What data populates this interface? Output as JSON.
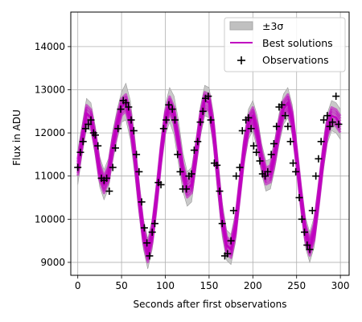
{
  "chart_data": {
    "type": "line",
    "title": "",
    "xlabel": "Seconds after first observations",
    "ylabel": "Flux in ADU",
    "xlim": [
      -8,
      310
    ],
    "ylim": [
      8700,
      14800
    ],
    "xticks": [
      0,
      50,
      100,
      150,
      200,
      250,
      300
    ],
    "yticks": [
      9000,
      10000,
      11000,
      12000,
      13000,
      14000
    ],
    "xtick_labels": [
      "0",
      "50",
      "100",
      "150",
      "200",
      "250",
      "300"
    ],
    "ytick_labels": [
      "9000",
      "10000",
      "11000",
      "12000",
      "13000",
      "14000"
    ],
    "grid": true,
    "legend_position": "top-right",
    "legend": {
      "band": "±3σ",
      "line": "Best solutions",
      "points": "Observations"
    },
    "colors": {
      "band": "#c0c0c0",
      "line": "#c000c0",
      "points": "#000000"
    },
    "curve": {
      "name": "Best solutions",
      "x": [
        0,
        5,
        10,
        15,
        20,
        25,
        30,
        35,
        40,
        45,
        50,
        55,
        60,
        65,
        70,
        75,
        80,
        85,
        90,
        95,
        100,
        105,
        110,
        115,
        120,
        125,
        130,
        135,
        140,
        145,
        150,
        155,
        160,
        165,
        170,
        175,
        180,
        185,
        190,
        195,
        200,
        205,
        210,
        215,
        220,
        225,
        230,
        235,
        240,
        245,
        250,
        255,
        260,
        265,
        270,
        275,
        280,
        285,
        290,
        295,
        300
      ],
      "y": [
        11200,
        11850,
        12450,
        12350,
        11800,
        11100,
        10800,
        11050,
        11700,
        12200,
        12600,
        12700,
        12300,
        11500,
        10500,
        9650,
        9200,
        9650,
        10500,
        11500,
        12300,
        12650,
        12400,
        11800,
        11100,
        10700,
        10800,
        11500,
        12250,
        12750,
        12700,
        12050,
        11000,
        10000,
        9400,
        9300,
        9800,
        10700,
        11600,
        12200,
        12400,
        12000,
        11400,
        11000,
        11050,
        11500,
        12100,
        12550,
        12700,
        12300,
        11450,
        10500,
        9700,
        9350,
        9700,
        10500,
        11400,
        12100,
        12400,
        12350,
        12200
      ]
    },
    "band": {
      "name": "±3σ",
      "x": [
        0,
        5,
        10,
        15,
        20,
        25,
        30,
        35,
        40,
        45,
        50,
        55,
        60,
        65,
        70,
        75,
        80,
        85,
        90,
        95,
        100,
        105,
        110,
        115,
        120,
        125,
        130,
        135,
        140,
        145,
        150,
        155,
        160,
        165,
        170,
        175,
        180,
        185,
        190,
        195,
        200,
        205,
        210,
        215,
        220,
        225,
        230,
        235,
        240,
        245,
        250,
        255,
        260,
        265,
        270,
        275,
        280,
        285,
        290,
        295,
        300
      ],
      "lower": [
        10800,
        11500,
        12100,
        12050,
        11450,
        10750,
        10450,
        10700,
        11350,
        11850,
        12250,
        12300,
        11850,
        11050,
        10100,
        9300,
        8850,
        9300,
        10150,
        11150,
        11950,
        12250,
        11950,
        11300,
        10650,
        10300,
        10400,
        11150,
        11900,
        12400,
        12350,
        11650,
        10550,
        9600,
        9050,
        8950,
        9450,
        10350,
        11250,
        11850,
        12050,
        11600,
        11050,
        10650,
        10700,
        11150,
        11750,
        12200,
        12350,
        11950,
        11100,
        10150,
        9350,
        9000,
        9350,
        10150,
        11050,
        11750,
        12050,
        12000,
        11850
      ],
      "upper": [
        11600,
        12200,
        12800,
        12700,
        12150,
        11450,
        11150,
        11400,
        12050,
        12550,
        12950,
        13150,
        12750,
        11950,
        10900,
        10000,
        9550,
        10000,
        10850,
        11850,
        12650,
        13050,
        12850,
        12300,
        11550,
        11100,
        11200,
        11850,
        12600,
        13100,
        13050,
        12450,
        11450,
        10400,
        9750,
        9650,
        10150,
        11050,
        11950,
        12550,
        12750,
        12400,
        11750,
        11350,
        11400,
        11850,
        12450,
        12900,
        13050,
        12650,
        11800,
        10850,
        10050,
        9700,
        10050,
        10850,
        11750,
        12450,
        12750,
        12700,
        12550
      ]
    },
    "observations": {
      "name": "Observations",
      "x": [
        0,
        3,
        6,
        9,
        12,
        15,
        18,
        20,
        23,
        27,
        30,
        33,
        36,
        40,
        43,
        46,
        49,
        52,
        55,
        58,
        61,
        64,
        67,
        70,
        73,
        76,
        79,
        82,
        85,
        88,
        92,
        95,
        98,
        101,
        104,
        108,
        111,
        114,
        117,
        120,
        124,
        127,
        130,
        133,
        137,
        140,
        143,
        146,
        149,
        152,
        156,
        159,
        162,
        165,
        168,
        171,
        175,
        178,
        181,
        185,
        188,
        192,
        195,
        198,
        201,
        204,
        208,
        211,
        214,
        217,
        221,
        224,
        227,
        230,
        233,
        237,
        240,
        243,
        246,
        249,
        253,
        256,
        259,
        262,
        265,
        268,
        272,
        275,
        278,
        281,
        285,
        288,
        291,
        295,
        298
      ],
      "y": [
        11200,
        11550,
        11800,
        12100,
        12200,
        12300,
        12000,
        11950,
        11700,
        10950,
        10900,
        10950,
        10650,
        11200,
        11650,
        12100,
        12550,
        12750,
        12700,
        12600,
        12300,
        12050,
        11500,
        11100,
        10400,
        9800,
        9450,
        9150,
        9700,
        9900,
        10850,
        10800,
        12100,
        12300,
        12650,
        12550,
        12300,
        11500,
        11100,
        10700,
        10700,
        11000,
        11050,
        11600,
        11800,
        12250,
        12500,
        12800,
        12850,
        12300,
        11300,
        11250,
        10650,
        9900,
        9150,
        9200,
        9500,
        10200,
        11000,
        11200,
        12050,
        12300,
        12350,
        12100,
        11700,
        11550,
        11350,
        11050,
        11000,
        11100,
        11500,
        11750,
        12150,
        12600,
        12650,
        12400,
        12150,
        11800,
        11300,
        11100,
        10500,
        10000,
        9700,
        9400,
        9300,
        10200,
        11000,
        11400,
        11800,
        12300,
        12400,
        12150,
        12250,
        12850,
        12200
      ]
    }
  }
}
